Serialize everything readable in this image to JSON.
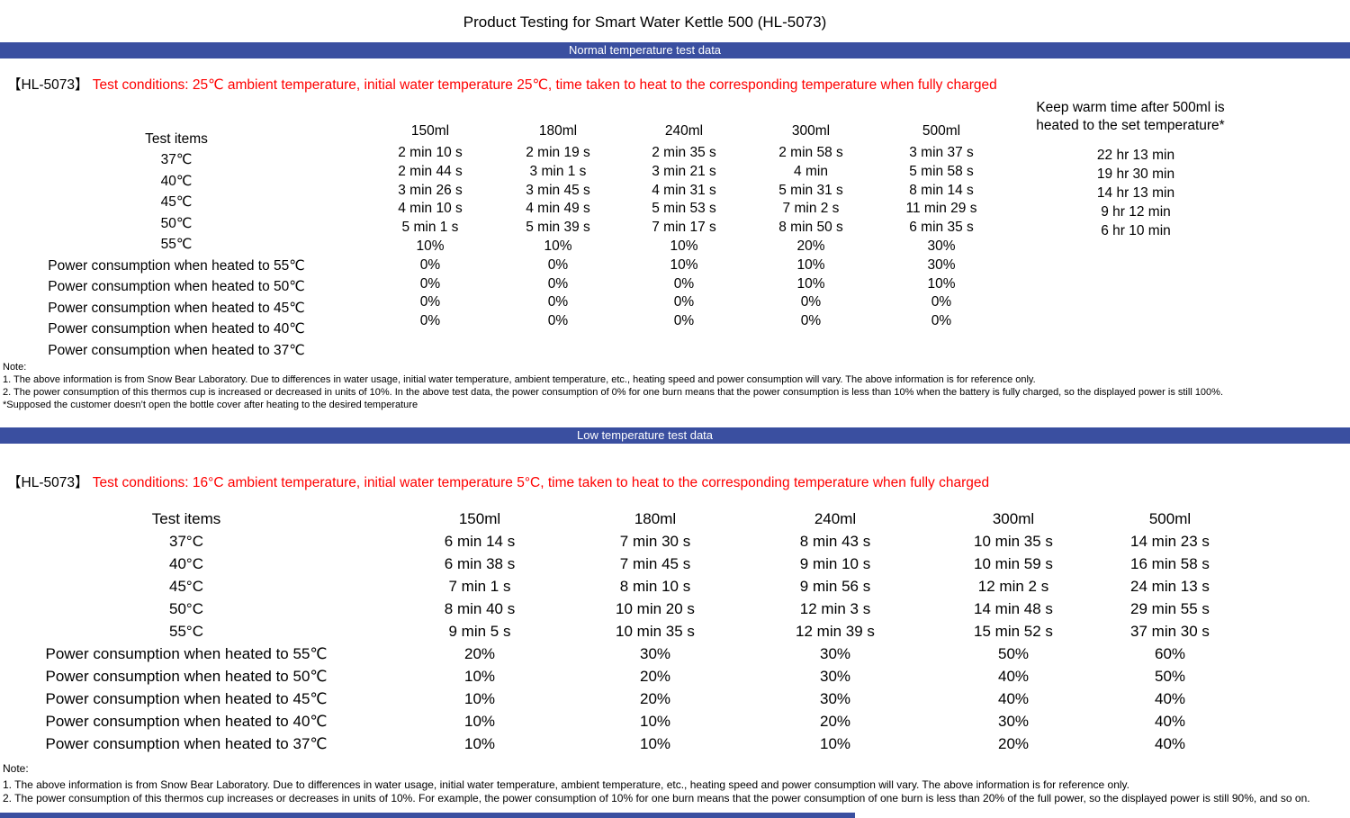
{
  "title": "Product Testing for Smart Water Kettle 500 (HL-5073)",
  "colors": {
    "accent": "#3a4fa0",
    "conditions_text": "#fe0000"
  },
  "section1": {
    "banner": "Normal temperature test data",
    "model": "【HL-5073】",
    "conditions": "Test conditions: 25℃ ambient temperature, initial water temperature 25℃, time taken to heat to the corresponding temperature when fully charged",
    "row_labels": [
      "Test items",
      "37℃",
      "40℃",
      "45℃",
      "50℃",
      "55℃",
      "Power consumption when heated to 55℃",
      "Power consumption when heated to 50℃",
      "Power consumption when heated to 45℃",
      "Power consumption when heated to 40℃",
      "Power consumption when heated to 37℃"
    ],
    "columns": [
      {
        "header": "150ml",
        "values": [
          "2 min 10 s",
          "2 min 44 s",
          "3 min 26 s",
          "4 min 10 s",
          "5 min 1 s",
          "10%",
          "0%",
          "0%",
          "0%",
          "0%"
        ]
      },
      {
        "header": "180ml",
        "values": [
          "2 min 19 s",
          "3 min 1 s",
          "3 min 45 s",
          "4 min 49 s",
          "5 min 39 s",
          "10%",
          "0%",
          "0%",
          "0%",
          "0%"
        ]
      },
      {
        "header": "240ml",
        "values": [
          "2 min 35 s",
          "3 min 21 s",
          "4 min 31 s",
          "5 min 53 s",
          "7 min 17 s",
          "10%",
          "10%",
          "0%",
          "0%",
          "0%"
        ]
      },
      {
        "header": "300ml",
        "values": [
          "2 min 58 s",
          "4 min",
          "5 min 31 s",
          "7 min 2 s",
          "8 min 50 s",
          "20%",
          "10%",
          "10%",
          "0%",
          "0%"
        ]
      },
      {
        "header": "500ml",
        "values": [
          "3 min 37 s",
          "5 min 58 s",
          "8 min 14 s",
          "11 min 29 s",
          "6 min 35 s",
          "30%",
          "30%",
          "10%",
          "0%",
          "0%"
        ]
      }
    ],
    "keep_warm": {
      "header_line1": "Keep warm time after 500ml is",
      "header_line2": "heated to the set temperature*",
      "values": [
        "22 hr 13 min",
        "19 hr 30 min",
        "14 hr 13 min",
        "9 hr 12 min",
        "6 hr 10 min"
      ]
    },
    "notes": [
      "Note:",
      "1. The above information is from Snow Bear Laboratory. Due to differences in water usage, initial water temperature, ambient temperature, etc., heating speed and power consumption will vary. The above information is for reference only.",
      "2. The power consumption of this thermos cup is increased or decreased in units of 10%. In the above test data, the power consumption of 0% for one burn means that the power consumption is less than 10% when the battery is fully charged, so the displayed power is still 100%.",
      "*Supposed the customer doesn’t open the bottle cover after heating to the desired temperature"
    ]
  },
  "section2": {
    "banner": "Low temperature test data",
    "model": "【HL-5073】",
    "conditions": "Test conditions: 16°C ambient temperature, initial water temperature 5°C, time taken to heat to the corresponding temperature when fully charged",
    "row_labels": [
      "Test items",
      "37°C",
      "40°C",
      "45°C",
      "50°C",
      "55°C",
      "Power consumption when heated to 55℃",
      "Power consumption when heated to 50℃",
      "Power consumption when heated to 45℃",
      "Power consumption when heated to 40℃",
      "Power consumption when heated to 37℃"
    ],
    "columns": [
      {
        "header": "150ml",
        "values": [
          "6 min 14 s",
          "6 min 38 s",
          "7 min 1 s",
          "8 min 40 s",
          "9 min 5 s",
          "20%",
          "10%",
          "10%",
          "10%",
          "10%"
        ]
      },
      {
        "header": "180ml",
        "values": [
          "7 min 30 s",
          "7 min 45 s",
          "8 min 10 s",
          "10 min 20 s",
          "10 min 35 s",
          "30%",
          "20%",
          "20%",
          "10%",
          "10%"
        ]
      },
      {
        "header": "240ml",
        "values": [
          "8 min 43 s",
          "9 min 10 s",
          "9 min 56 s",
          "12 min 3 s",
          "12 min 39 s",
          "30%",
          "30%",
          "30%",
          "20%",
          "10%"
        ]
      },
      {
        "header": "300ml",
        "values": [
          "10 min 35 s",
          "10 min 59 s",
          "12 min 2 s",
          "14 min 48 s",
          "15 min 52 s",
          "50%",
          "40%",
          "40%",
          "30%",
          "20%"
        ]
      },
      {
        "header": "500ml",
        "values": [
          "14 min 23 s",
          "16 min 58 s",
          "24 min 13 s",
          "29 min 55 s",
          "37 min 30 s",
          "60%",
          "50%",
          "40%",
          "40%",
          "40%"
        ]
      }
    ],
    "notes": [
      "Note:",
      "1. The above information is from Snow Bear Laboratory. Due to differences in water usage, initial water temperature, ambient temperature, etc., heating speed and power consumption will vary. The above information is for reference only.",
      "2. The power consumption of this thermos cup increases or decreases in units of 10%. For example, the power consumption of 10% for one burn means that the power consumption of one burn is less than 20% of the full power, so the displayed power is still 90%, and so on."
    ]
  }
}
